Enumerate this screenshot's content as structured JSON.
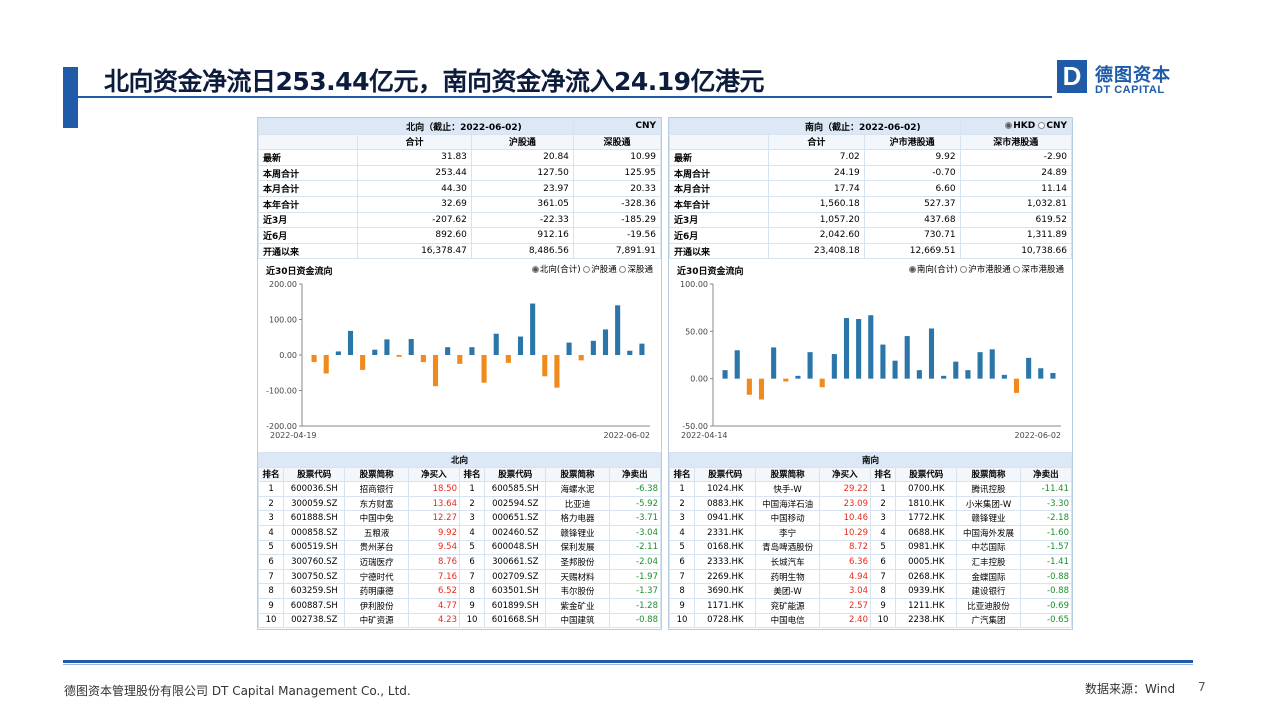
{
  "title": "北向资金净流日253.44亿元，南向资金净流入24.19亿港元",
  "logo": {
    "mark": "D",
    "cn": "德图资本",
    "en": "DT CAPITAL"
  },
  "colors": {
    "accent": "#1f5ba8",
    "bar_pos": "#2b76a8",
    "bar_neg": "#f08a1c",
    "up": "#e8291c",
    "down": "#1a8f2c"
  },
  "north": {
    "header": "北向（截止：2022-06-02)",
    "unit": "CNY",
    "columns": [
      "合计",
      "沪股通",
      "深股通"
    ],
    "rows": [
      {
        "label": "最新",
        "values": [
          "31.83",
          "20.84",
          "10.99"
        ]
      },
      {
        "label": "本周合计",
        "values": [
          "253.44",
          "127.50",
          "125.95"
        ]
      },
      {
        "label": "本月合计",
        "values": [
          "44.30",
          "23.97",
          "20.33"
        ]
      },
      {
        "label": "本年合计",
        "values": [
          "32.69",
          "361.05",
          "-328.36"
        ]
      },
      {
        "label": "近3月",
        "values": [
          "-207.62",
          "-22.33",
          "-185.29"
        ]
      },
      {
        "label": "近6月",
        "values": [
          "892.60",
          "912.16",
          "-19.56"
        ]
      },
      {
        "label": "开通以来",
        "values": [
          "16,378.47",
          "8,486.56",
          "7,891.91"
        ]
      }
    ],
    "chart_title": "近30日资金流向",
    "legend": [
      "北向(合计)",
      "沪股通",
      "深股通"
    ],
    "rank_title": "北向",
    "rank_cols": [
      "排名",
      "股票代码",
      "股票简称",
      "净买入",
      "排名",
      "股票代码",
      "股票简称",
      "净卖出"
    ],
    "buy": [
      [
        "1",
        "600036.SH",
        "招商银行",
        "18.50"
      ],
      [
        "2",
        "300059.SZ",
        "东方财富",
        "13.64"
      ],
      [
        "3",
        "601888.SH",
        "中国中免",
        "12.27"
      ],
      [
        "4",
        "000858.SZ",
        "五粮液",
        "9.92"
      ],
      [
        "5",
        "600519.SH",
        "贵州茅台",
        "9.54"
      ],
      [
        "6",
        "300760.SZ",
        "迈瑞医疗",
        "8.76"
      ],
      [
        "7",
        "300750.SZ",
        "宁德时代",
        "7.16"
      ],
      [
        "8",
        "603259.SH",
        "药明康德",
        "6.52"
      ],
      [
        "9",
        "600887.SH",
        "伊利股份",
        "4.77"
      ],
      [
        "10",
        "002738.SZ",
        "中矿资源",
        "4.23"
      ]
    ],
    "sell": [
      [
        "1",
        "600585.SH",
        "海螺水泥",
        "-6.38"
      ],
      [
        "2",
        "002594.SZ",
        "比亚迪",
        "-5.92"
      ],
      [
        "3",
        "000651.SZ",
        "格力电器",
        "-3.71"
      ],
      [
        "4",
        "002460.SZ",
        "赣锋锂业",
        "-3.04"
      ],
      [
        "5",
        "600048.SH",
        "保利发展",
        "-2.11"
      ],
      [
        "6",
        "300661.SZ",
        "圣邦股份",
        "-2.04"
      ],
      [
        "7",
        "002709.SZ",
        "天赐材料",
        "-1.97"
      ],
      [
        "8",
        "603501.SH",
        "韦尔股份",
        "-1.37"
      ],
      [
        "9",
        "601899.SH",
        "紫金矿业",
        "-1.28"
      ],
      [
        "10",
        "601668.SH",
        "中国建筑",
        "-0.88"
      ]
    ]
  },
  "south": {
    "header": "南向（截止：2022-06-02)",
    "unit_options": [
      "HKD",
      "CNY"
    ],
    "columns": [
      "合计",
      "沪市港股通",
      "深市港股通"
    ],
    "rows": [
      {
        "label": "最新",
        "values": [
          "7.02",
          "9.92",
          "-2.90"
        ]
      },
      {
        "label": "本周合计",
        "values": [
          "24.19",
          "-0.70",
          "24.89"
        ]
      },
      {
        "label": "本月合计",
        "values": [
          "17.74",
          "6.60",
          "11.14"
        ]
      },
      {
        "label": "本年合计",
        "values": [
          "1,560.18",
          "527.37",
          "1,032.81"
        ]
      },
      {
        "label": "近3月",
        "values": [
          "1,057.20",
          "437.68",
          "619.52"
        ]
      },
      {
        "label": "近6月",
        "values": [
          "2,042.60",
          "730.71",
          "1,311.89"
        ]
      },
      {
        "label": "开通以来",
        "values": [
          "23,408.18",
          "12,669.51",
          "10,738.66"
        ]
      }
    ],
    "chart_title": "近30日资金流向",
    "legend": [
      "南向(合计)",
      "沪市港股通",
      "深市港股通"
    ],
    "rank_title": "南向",
    "rank_cols": [
      "排名",
      "股票代码",
      "股票简称",
      "净买入",
      "排名",
      "股票代码",
      "股票简称",
      "净卖出"
    ],
    "buy": [
      [
        "1",
        "1024.HK",
        "快手-W",
        "29.22"
      ],
      [
        "2",
        "0883.HK",
        "中国海洋石油",
        "23.09"
      ],
      [
        "3",
        "0941.HK",
        "中国移动",
        "10.46"
      ],
      [
        "4",
        "2331.HK",
        "李宁",
        "10.29"
      ],
      [
        "5",
        "0168.HK",
        "青岛啤酒股份",
        "8.72"
      ],
      [
        "6",
        "2333.HK",
        "长城汽车",
        "6.36"
      ],
      [
        "7",
        "2269.HK",
        "药明生物",
        "4.94"
      ],
      [
        "8",
        "3690.HK",
        "美团-W",
        "3.04"
      ],
      [
        "9",
        "1171.HK",
        "兖矿能源",
        "2.57"
      ],
      [
        "10",
        "0728.HK",
        "中国电信",
        "2.40"
      ]
    ],
    "sell": [
      [
        "1",
        "0700.HK",
        "腾讯控股",
        "-11.41"
      ],
      [
        "2",
        "1810.HK",
        "小米集团-W",
        "-3.30"
      ],
      [
        "3",
        "1772.HK",
        "赣锋锂业",
        "-2.18"
      ],
      [
        "4",
        "0688.HK",
        "中国海外发展",
        "-1.60"
      ],
      [
        "5",
        "0981.HK",
        "中芯国际",
        "-1.57"
      ],
      [
        "6",
        "0005.HK",
        "汇丰控股",
        "-1.41"
      ],
      [
        "7",
        "0268.HK",
        "金蝶国际",
        "-0.88"
      ],
      [
        "8",
        "0939.HK",
        "建设银行",
        "-0.88"
      ],
      [
        "9",
        "1211.HK",
        "比亚迪股份",
        "-0.69"
      ],
      [
        "10",
        "2238.HK",
        "广汽集团",
        "-0.65"
      ]
    ]
  },
  "chart_data": [
    {
      "type": "bar",
      "title": "近30日资金流向",
      "x_start": "2022-04-19",
      "x_end": "2022-06-02",
      "ylim": [
        -200,
        200
      ],
      "yticks": [
        "200.00",
        "100.00",
        "0.00",
        "-100.00",
        "-200.00"
      ],
      "values": [
        -20,
        -52,
        10,
        68,
        -42,
        15,
        44,
        -5,
        45,
        -20,
        -88,
        22,
        -25,
        22,
        -78,
        60,
        -22,
        52,
        145,
        -60,
        -92,
        35,
        -15,
        40,
        72,
        140,
        12,
        32
      ],
      "grid": false,
      "legend_position": "top-right"
    },
    {
      "type": "bar",
      "title": "近30日资金流向",
      "x_start": "2022-04-14",
      "x_end": "2022-06-02",
      "ylim": [
        -50,
        100
      ],
      "yticks": [
        "100.00",
        "50.00",
        "0.00",
        "-50.00"
      ],
      "values": [
        9,
        30,
        -17,
        -22,
        33,
        -3,
        3,
        28,
        -9,
        26,
        64,
        63,
        67,
        36,
        19,
        45,
        9,
        53,
        3,
        18,
        9,
        28,
        31,
        4,
        -15,
        22,
        11,
        6
      ],
      "grid": false,
      "legend_position": "top-right"
    }
  ],
  "footer": {
    "company": "德图资本管理股份有限公司  DT Capital Management  Co., Ltd.",
    "source": "数据来源：Wind",
    "page": "7"
  }
}
